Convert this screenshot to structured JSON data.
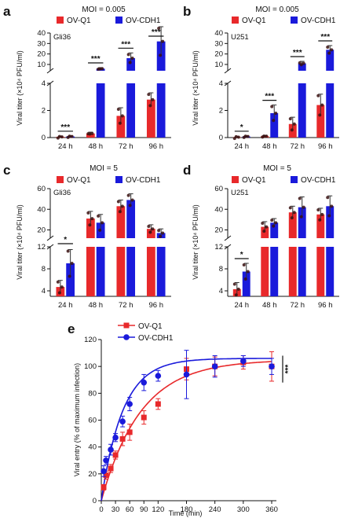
{
  "colors": {
    "ov_q1": "#e8292b",
    "ov_cdh1": "#1a1adb",
    "axis": "#111111"
  },
  "chart_data": [
    {
      "panel": "a",
      "type": "bar",
      "title": "MOI = 0.005",
      "cell_line": "Gli36",
      "ylabel": "Viral titer (×10⁴ PFU/ml)",
      "categories": [
        "24 h",
        "48 h",
        "72 h",
        "96 h"
      ],
      "series": [
        {
          "name": "OV-Q1",
          "values": [
            0.05,
            0.3,
            1.6,
            2.8
          ],
          "errors": [
            0.03,
            0.1,
            0.6,
            0.5
          ]
        },
        {
          "name": "OV-CDH1",
          "values": [
            0.08,
            6.0,
            16,
            32
          ],
          "errors": [
            0.04,
            1.0,
            5,
            14
          ]
        }
      ],
      "broken_axis": {
        "lower": [
          0,
          4
        ],
        "upper": [
          4,
          40
        ]
      },
      "yticks": [
        "0",
        "2",
        "4",
        "10",
        "20",
        "30",
        "40"
      ],
      "significance": [
        "***",
        "***",
        "***",
        "***"
      ]
    },
    {
      "panel": "b",
      "type": "bar",
      "title": "MOI = 0.005",
      "cell_line": "U251",
      "ylabel": "Viral titer (×10⁴ PFU/ml)",
      "categories": [
        "24 h",
        "48 h",
        "72 h",
        "96 h"
      ],
      "series": [
        {
          "name": "OV-Q1",
          "values": [
            0.03,
            0.1,
            1.0,
            2.4
          ],
          "errors": [
            0.02,
            0.05,
            0.5,
            0.8
          ]
        },
        {
          "name": "OV-CDH1",
          "values": [
            0.08,
            1.8,
            11,
            24
          ],
          "errors": [
            0.04,
            0.6,
            2,
            4
          ]
        }
      ],
      "broken_axis": {
        "lower": [
          0,
          4
        ],
        "upper": [
          4,
          40
        ]
      },
      "yticks": [
        "0",
        "2",
        "4",
        "10",
        "20",
        "30",
        "40"
      ],
      "significance": [
        "*",
        "***",
        "***",
        "***"
      ]
    },
    {
      "panel": "c",
      "type": "bar",
      "title": "MOI = 5",
      "cell_line": "Gli36",
      "ylabel": "Viral titer (×10⁴ PFU/ml)",
      "categories": [
        "24 h",
        "48 h",
        "72 h",
        "96 h"
      ],
      "series": [
        {
          "name": "OV-Q1",
          "values": [
            4.7,
            31,
            43,
            21
          ],
          "errors": [
            1.2,
            7,
            6,
            4
          ]
        },
        {
          "name": "OV-CDH1",
          "values": [
            9,
            27,
            49,
            17
          ],
          "errors": [
            2.5,
            8,
            6,
            4
          ]
        }
      ],
      "broken_axis": {
        "lower": [
          3,
          12
        ],
        "upper": [
          12,
          60
        ]
      },
      "yticks": [
        "4",
        "8",
        "12",
        "20",
        "40",
        "60"
      ],
      "significance": [
        "*",
        "",
        "",
        ""
      ]
    },
    {
      "panel": "d",
      "type": "bar",
      "title": "MOI = 5",
      "cell_line": "U251",
      "ylabel": "Viral titer (×10⁴ PFU/ml)",
      "categories": [
        "24 h",
        "48 h",
        "72 h",
        "96 h"
      ],
      "series": [
        {
          "name": "OV-Q1",
          "values": [
            4.3,
            23,
            37,
            35
          ],
          "errors": [
            1.2,
            5,
            6,
            6
          ]
        },
        {
          "name": "OV-CDH1",
          "values": [
            7.5,
            27,
            42,
            43
          ],
          "errors": [
            1.5,
            4,
            10,
            10
          ]
        }
      ],
      "broken_axis": {
        "lower": [
          3,
          12
        ],
        "upper": [
          12,
          60
        ]
      },
      "yticks": [
        "4",
        "8",
        "12",
        "20",
        "40",
        "60"
      ],
      "significance": [
        "*",
        "",
        "",
        ""
      ]
    },
    {
      "panel": "e",
      "type": "scatter",
      "ylabel": "Viral entry (% of maximum infection)",
      "xlabel": "Time (min)",
      "xlim": [
        0,
        360
      ],
      "ylim": [
        0,
        120
      ],
      "xticks": [
        0,
        30,
        60,
        90,
        120,
        180,
        240,
        300,
        360
      ],
      "yticks": [
        0,
        20,
        40,
        60,
        80,
        100,
        120
      ],
      "series": [
        {
          "name": "OV-Q1",
          "x": [
            5,
            10,
            20,
            30,
            45,
            60,
            90,
            120,
            180,
            240,
            300,
            360
          ],
          "y": [
            10,
            19,
            24,
            34,
            46,
            51,
            62,
            72,
            98,
            100,
            103,
            100
          ],
          "errors": [
            2,
            3,
            3,
            3,
            5,
            6,
            5,
            4,
            8,
            7,
            5,
            11
          ]
        },
        {
          "name": "OV-CDH1",
          "x": [
            5,
            10,
            20,
            30,
            45,
            60,
            90,
            120,
            180,
            240,
            300,
            360
          ],
          "y": [
            22,
            30,
            38,
            47,
            59,
            72,
            88,
            93,
            94,
            100,
            104,
            100
          ],
          "errors": [
            4,
            3,
            4,
            3,
            4,
            5,
            6,
            4,
            18,
            8,
            4,
            6
          ]
        }
      ],
      "significance": "***"
    }
  ]
}
